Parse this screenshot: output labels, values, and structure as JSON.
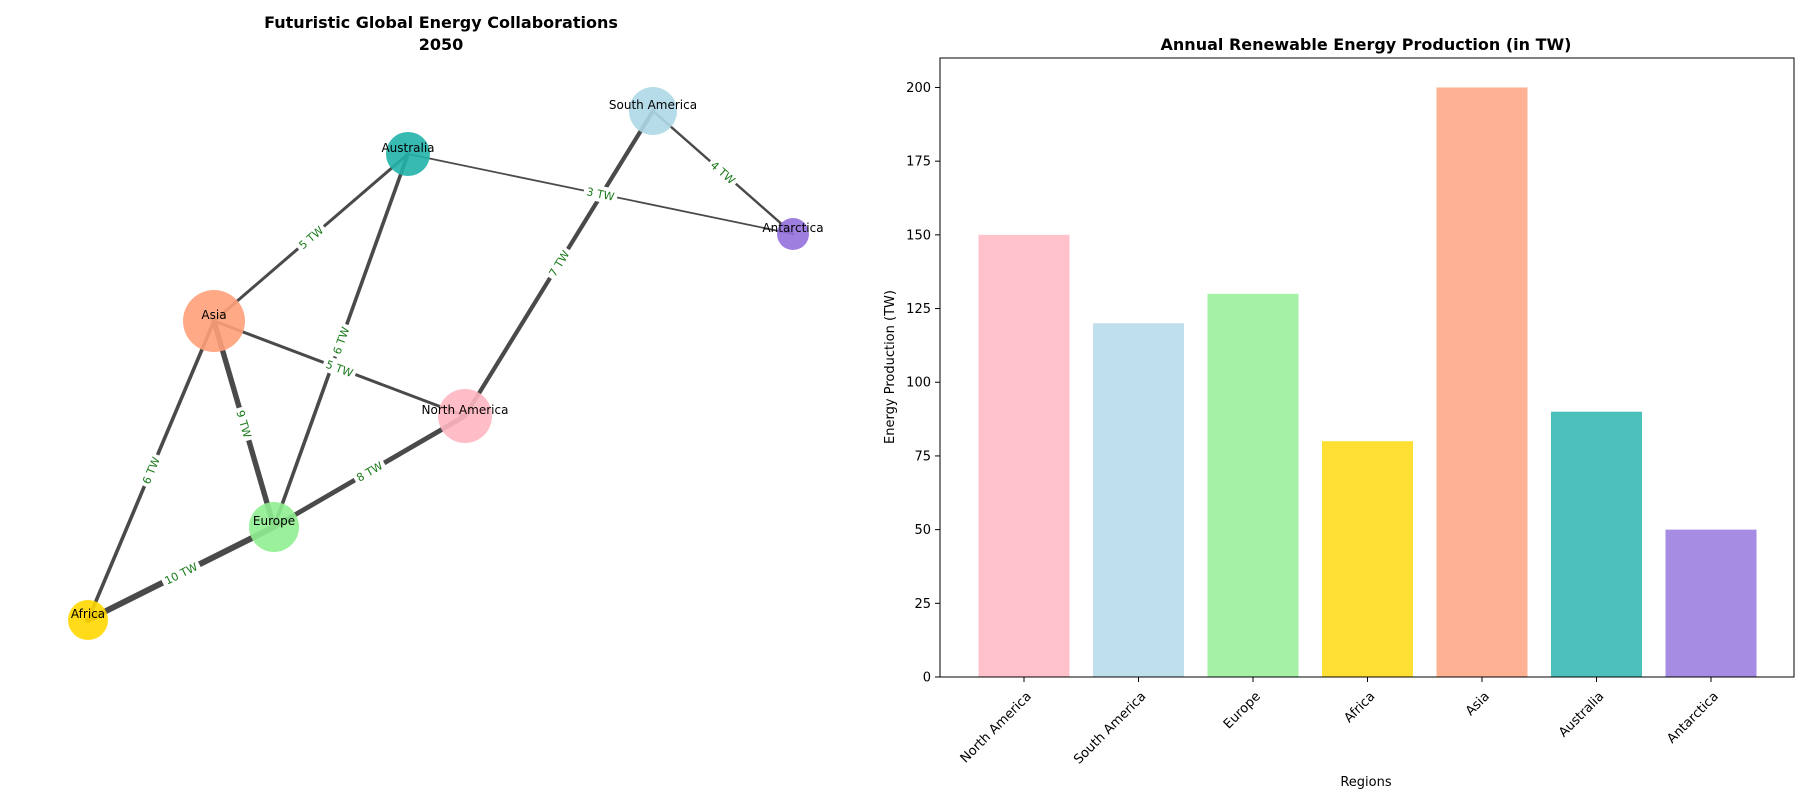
{
  "chart_data": [
    {
      "type": "network",
      "title": "Futuristic Global Energy Collaborations\n2050",
      "nodes": [
        {
          "name": "North America",
          "color": "#FFB6C1"
        },
        {
          "name": "South America",
          "color": "#ADD8E6"
        },
        {
          "name": "Europe",
          "color": "#90EE90"
        },
        {
          "name": "Africa",
          "color": "#FFD700"
        },
        {
          "name": "Asia",
          "color": "#FFA07A"
        },
        {
          "name": "Australia",
          "color": "#20B2AA"
        },
        {
          "name": "Antarctica",
          "color": "#9370DB"
        }
      ],
      "edges": [
        {
          "source": "Asia",
          "target": "Australia",
          "value": 5,
          "label": "5 TW"
        },
        {
          "source": "Australia",
          "target": "Antarctica",
          "value": 3,
          "label": "3 TW"
        },
        {
          "source": "South America",
          "target": "Antarctica",
          "value": 4,
          "label": "4 TW"
        },
        {
          "source": "South America",
          "target": "North America",
          "value": 7,
          "label": "7 TW"
        },
        {
          "source": "Australia",
          "target": "Europe",
          "value": 6,
          "label": "6 TW"
        },
        {
          "source": "Asia",
          "target": "North America",
          "value": 5,
          "label": "5 TW"
        },
        {
          "source": "Asia",
          "target": "Europe",
          "value": 9,
          "label": "9 TW"
        },
        {
          "source": "Asia",
          "target": "Africa",
          "value": 6,
          "label": "6 TW"
        },
        {
          "source": "North America",
          "target": "Europe",
          "value": 8,
          "label": "8 TW"
        },
        {
          "source": "Europe",
          "target": "Africa",
          "value": 10,
          "label": "10 TW"
        }
      ],
      "edge_color": "#4A4A4A",
      "edge_label_color": "#1A7A1A"
    },
    {
      "type": "bar",
      "title": "Annual Renewable Energy Production (in TW)",
      "xlabel": "Regions",
      "ylabel": "Energy Production (TW)",
      "categories": [
        "North America",
        "South America",
        "Europe",
        "Africa",
        "Asia",
        "Australia",
        "Antarctica"
      ],
      "values": [
        150,
        120,
        130,
        80,
        200,
        90,
        50
      ],
      "colors": [
        "#FFC2CD",
        "#BEDFEB",
        "#A5F1A5",
        "#FFDF33",
        "#FFB293",
        "#4CC1BB",
        "#A68CE2"
      ],
      "ylim": [
        0,
        210
      ],
      "yticks": [
        0,
        25,
        50,
        75,
        100,
        125,
        150,
        175,
        200
      ],
      "grid": false
    }
  ]
}
